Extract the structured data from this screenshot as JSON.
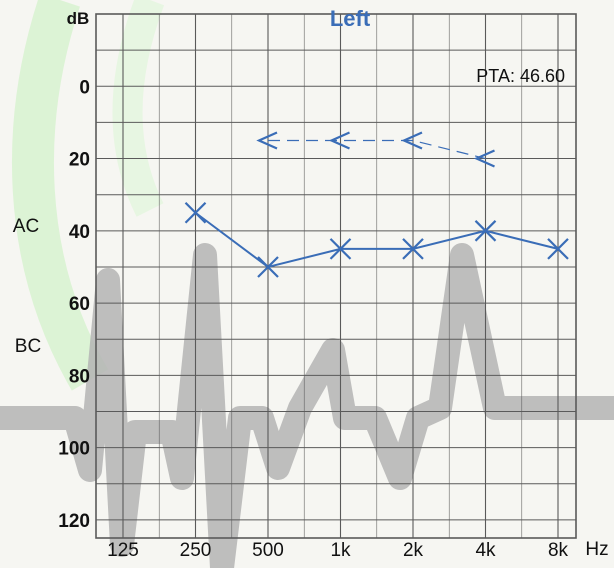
{
  "chart_data": {
    "type": "line",
    "title": "Left",
    "y_unit": "dB",
    "x_unit": "Hz",
    "side_labels": [
      "AC",
      "BC"
    ],
    "pta_label": "PTA: 46.60",
    "categories": [
      "125",
      "250",
      "500",
      "1k",
      "2k",
      "4k",
      "8k"
    ],
    "y_tick_labels": [
      "0",
      "20",
      "40",
      "60",
      "80",
      "100",
      "120"
    ],
    "ylim": [
      -20,
      125
    ],
    "y_inverted": true,
    "grid": true,
    "series": [
      {
        "symbol": "X",
        "line_style": "solid",
        "color": "#3a6db7",
        "points": [
          {
            "x": "250",
            "y": 35
          },
          {
            "x": "500",
            "y": 50
          },
          {
            "x": "1k",
            "y": 45
          },
          {
            "x": "2k",
            "y": 45
          },
          {
            "x": "4k",
            "y": 40
          },
          {
            "x": "8k",
            "y": 45
          }
        ]
      },
      {
        "symbol": "<",
        "line_style": "dashed",
        "color": "#3a6db7",
        "points": [
          {
            "x": "500",
            "y": 15
          },
          {
            "x": "1k",
            "y": 15
          },
          {
            "x": "2k",
            "y": 15
          },
          {
            "x": "4k",
            "y": 20
          }
        ]
      }
    ]
  },
  "colors": {
    "title": "#3a6db7",
    "grid": "#5a5a5a",
    "text": "#111111",
    "watermark_gray": "#b4b4b4",
    "watermark_green": "#d9f3d2"
  }
}
